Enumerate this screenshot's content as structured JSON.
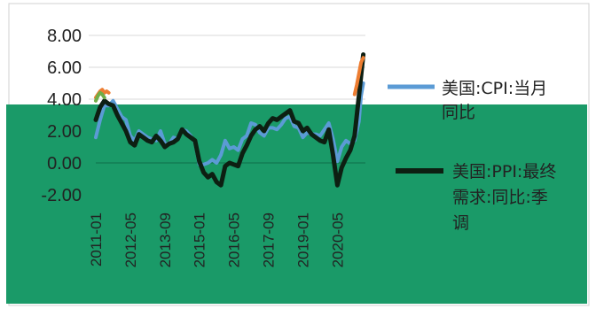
{
  "chart_data": {
    "type": "line",
    "title": "",
    "xlabel": "",
    "ylabel": "",
    "ylim": [
      -2,
      8
    ],
    "y_ticks": [
      "8.00",
      "6.00",
      "4.00",
      "2.00",
      "0.00",
      "-2.00"
    ],
    "x_tick_labels": [
      "2011-01",
      "2012-05",
      "2013-09",
      "2015-01",
      "2016-05",
      "2017-09",
      "2019-01",
      "2020-05"
    ],
    "x_range": [
      "2011-01",
      "2021-06"
    ],
    "grid": true,
    "legend": "right",
    "series": [
      {
        "name": "美国:CPI:当月同比",
        "color": "#5b9bd5",
        "legend_lines": [
          "美国:CPI:当月",
          "同比"
        ],
        "points": [
          [
            "2011-01",
            1.6
          ],
          [
            "2011-03",
            2.7
          ],
          [
            "2011-05",
            3.6
          ],
          [
            "2011-07",
            3.6
          ],
          [
            "2011-09",
            3.9
          ],
          [
            "2011-11",
            3.4
          ],
          [
            "2012-01",
            2.9
          ],
          [
            "2012-03",
            2.7
          ],
          [
            "2012-05",
            1.7
          ],
          [
            "2012-07",
            1.4
          ],
          [
            "2012-09",
            2.0
          ],
          [
            "2012-11",
            1.8
          ],
          [
            "2013-01",
            1.6
          ],
          [
            "2013-03",
            1.5
          ],
          [
            "2013-05",
            1.4
          ],
          [
            "2013-07",
            2.0
          ],
          [
            "2013-09",
            1.2
          ],
          [
            "2013-11",
            1.2
          ],
          [
            "2014-01",
            1.6
          ],
          [
            "2014-03",
            1.5
          ],
          [
            "2014-05",
            2.1
          ],
          [
            "2014-07",
            2.0
          ],
          [
            "2014-09",
            1.7
          ],
          [
            "2014-11",
            1.3
          ],
          [
            "2015-01",
            -0.1
          ],
          [
            "2015-03",
            -0.1
          ],
          [
            "2015-05",
            0.0
          ],
          [
            "2015-07",
            0.2
          ],
          [
            "2015-09",
            0.0
          ],
          [
            "2015-11",
            0.5
          ],
          [
            "2016-01",
            1.4
          ],
          [
            "2016-03",
            0.9
          ],
          [
            "2016-05",
            1.0
          ],
          [
            "2016-07",
            0.8
          ],
          [
            "2016-09",
            1.5
          ],
          [
            "2016-11",
            1.7
          ],
          [
            "2017-01",
            2.5
          ],
          [
            "2017-03",
            2.4
          ],
          [
            "2017-05",
            1.9
          ],
          [
            "2017-07",
            1.7
          ],
          [
            "2017-09",
            2.2
          ],
          [
            "2017-11",
            2.2
          ],
          [
            "2018-01",
            2.1
          ],
          [
            "2018-03",
            2.4
          ],
          [
            "2018-05",
            2.8
          ],
          [
            "2018-07",
            2.9
          ],
          [
            "2018-09",
            2.3
          ],
          [
            "2018-11",
            2.2
          ],
          [
            "2019-01",
            1.6
          ],
          [
            "2019-03",
            1.9
          ],
          [
            "2019-05",
            1.8
          ],
          [
            "2019-07",
            1.8
          ],
          [
            "2019-09",
            1.7
          ],
          [
            "2019-11",
            2.1
          ],
          [
            "2020-01",
            2.5
          ],
          [
            "2020-03",
            1.5
          ],
          [
            "2020-05",
            0.1
          ],
          [
            "2020-07",
            1.0
          ],
          [
            "2020-09",
            1.4
          ],
          [
            "2020-11",
            1.2
          ],
          [
            "2021-01",
            1.4
          ],
          [
            "2021-03",
            2.6
          ],
          [
            "2021-04",
            4.2
          ],
          [
            "2021-05",
            5.0
          ]
        ]
      },
      {
        "name": "美国:PPI:最终需求:同比:季调",
        "color": "#0d1f12",
        "legend_lines": [
          "美国:PPI:最终",
          "需求:同比:季",
          "调"
        ],
        "points": [
          [
            "2011-01",
            2.7
          ],
          [
            "2011-03",
            3.5
          ],
          [
            "2011-05",
            3.9
          ],
          [
            "2011-07",
            3.7
          ],
          [
            "2011-09",
            3.6
          ],
          [
            "2011-11",
            3.0
          ],
          [
            "2012-01",
            2.5
          ],
          [
            "2012-03",
            2.0
          ],
          [
            "2012-05",
            1.3
          ],
          [
            "2012-07",
            1.1
          ],
          [
            "2012-09",
            1.8
          ],
          [
            "2012-11",
            1.6
          ],
          [
            "2013-01",
            1.4
          ],
          [
            "2013-03",
            1.3
          ],
          [
            "2013-05",
            1.7
          ],
          [
            "2013-07",
            1.4
          ],
          [
            "2013-09",
            1.0
          ],
          [
            "2013-11",
            1.2
          ],
          [
            "2014-01",
            1.3
          ],
          [
            "2014-03",
            1.5
          ],
          [
            "2014-05",
            2.1
          ],
          [
            "2014-07",
            1.8
          ],
          [
            "2014-09",
            1.6
          ],
          [
            "2014-11",
            1.4
          ],
          [
            "2015-01",
            0.1
          ],
          [
            "2015-03",
            -0.6
          ],
          [
            "2015-05",
            -0.9
          ],
          [
            "2015-07",
            -0.7
          ],
          [
            "2015-09",
            -1.2
          ],
          [
            "2015-11",
            -1.4
          ],
          [
            "2016-01",
            -0.2
          ],
          [
            "2016-03",
            0.0
          ],
          [
            "2016-05",
            -0.1
          ],
          [
            "2016-07",
            -0.2
          ],
          [
            "2016-09",
            0.6
          ],
          [
            "2016-11",
            1.1
          ],
          [
            "2017-01",
            1.7
          ],
          [
            "2017-03",
            2.1
          ],
          [
            "2017-05",
            2.3
          ],
          [
            "2017-07",
            2.0
          ],
          [
            "2017-09",
            2.5
          ],
          [
            "2017-11",
            2.8
          ],
          [
            "2018-01",
            2.7
          ],
          [
            "2018-03",
            2.9
          ],
          [
            "2018-05",
            3.1
          ],
          [
            "2018-07",
            3.3
          ],
          [
            "2018-09",
            2.6
          ],
          [
            "2018-11",
            2.5
          ],
          [
            "2019-01",
            2.0
          ],
          [
            "2019-03",
            2.2
          ],
          [
            "2019-05",
            1.8
          ],
          [
            "2019-07",
            1.6
          ],
          [
            "2019-09",
            1.4
          ],
          [
            "2019-11",
            1.3
          ],
          [
            "2020-01",
            2.1
          ],
          [
            "2020-03",
            0.5
          ],
          [
            "2020-05",
            -1.4
          ],
          [
            "2020-07",
            -0.3
          ],
          [
            "2020-09",
            0.3
          ],
          [
            "2020-11",
            0.8
          ],
          [
            "2021-01",
            1.7
          ],
          [
            "2021-03",
            4.2
          ],
          [
            "2021-05",
            6.8
          ]
        ]
      },
      {
        "color": "#ed7d31",
        "points": [
          [
            "2011-01",
            4.1
          ],
          [
            "2011-02",
            4.3
          ],
          [
            "2011-03",
            4.5
          ],
          [
            "2011-04",
            4.6
          ],
          [
            "2011-05",
            4.4
          ],
          [
            "2011-06",
            4.5
          ],
          [
            "2011-07",
            4.4
          ],
          [
            "2021-01",
            4.3
          ],
          [
            "2021-02",
            4.9
          ],
          [
            "2021-03",
            5.6
          ],
          [
            "2021-04",
            6.3
          ],
          [
            "2021-05",
            6.6
          ]
        ]
      },
      {
        "color": "#70ad47",
        "points": [
          [
            "2011-01",
            3.9
          ],
          [
            "2011-02",
            4.2
          ],
          [
            "2011-03",
            4.4
          ],
          [
            "2011-04",
            4.3
          ],
          [
            "2011-05",
            4.1
          ]
        ]
      }
    ]
  }
}
